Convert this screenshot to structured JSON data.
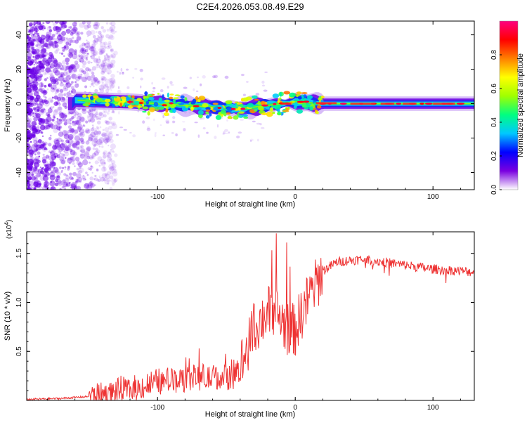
{
  "title": "C2E4.2026.053.08.49.E29",
  "chart_data": [
    {
      "type": "heatmap",
      "name": "spectrogram",
      "xlabel": "Height of straight line (km)",
      "ylabel": "Frequency (Hz)",
      "xlim": [
        -195,
        130
      ],
      "ylim": [
        -50,
        48
      ],
      "xticks": [
        -100,
        0,
        100
      ],
      "yticks": [
        -40,
        -20,
        0,
        20,
        40
      ],
      "colorbar": {
        "label": "Normalized spectral amplitude",
        "range": [
          0,
          1
        ],
        "ticks": [
          "0.0",
          "0.2",
          "0.4",
          "0.6",
          "0.8"
        ],
        "tick_values": [
          0,
          0.2,
          0.4,
          0.6,
          0.8
        ],
        "colors": [
          "#ffffff",
          "#7a00e0",
          "#0000ff",
          "#00c8ff",
          "#00ff80",
          "#a0ff00",
          "#ffff00",
          "#ff8000",
          "#ff0000",
          "#ff0080"
        ]
      },
      "band_center": [
        {
          "x": -160,
          "y": 2
        },
        {
          "x": -120,
          "y": 1
        },
        {
          "x": -100,
          "y": 0
        },
        {
          "x": -80,
          "y": -1
        },
        {
          "x": -60,
          "y": -2
        },
        {
          "x": -40,
          "y": -3
        },
        {
          "x": -20,
          "y": -1
        },
        {
          "x": 0,
          "y": 1
        },
        {
          "x": 20,
          "y": 0
        },
        {
          "x": 130,
          "y": 0
        }
      ]
    },
    {
      "type": "line",
      "name": "snr",
      "xlabel": "Height of straight line (km)",
      "ylabel": "SNR (10 * v/v)",
      "multiplier": "(x10",
      "multiplier_exp": "4",
      "multiplier_close": ")",
      "xlim": [
        -195,
        130
      ],
      "ylim": [
        0,
        1.72
      ],
      "xticks": [
        -100,
        0,
        100
      ],
      "yticks": [
        0.5,
        1.0,
        1.5
      ],
      "ytick_labels": [
        "0.5",
        "1.0",
        "1.5"
      ],
      "color": "#ee3333",
      "series": [
        {
          "name": "SNR",
          "x": [
            -195,
            -170,
            -160,
            -150,
            -140,
            -130,
            -120,
            -110,
            -100,
            -90,
            -80,
            -70,
            -60,
            -50,
            -45,
            -40,
            -35,
            -30,
            -25,
            -20,
            -15,
            -10,
            -5,
            0,
            5,
            10,
            15,
            20,
            30,
            40,
            50,
            60,
            70,
            80,
            90,
            100,
            110,
            120,
            130
          ],
          "y": [
            0.01,
            0.02,
            0.03,
            0.04,
            0.06,
            0.09,
            0.11,
            0.14,
            0.18,
            0.21,
            0.23,
            0.24,
            0.22,
            0.24,
            0.27,
            0.34,
            0.52,
            0.72,
            0.82,
            0.9,
            0.92,
            0.82,
            0.72,
            0.72,
            0.9,
            1.05,
            1.18,
            1.32,
            1.41,
            1.43,
            1.44,
            1.42,
            1.4,
            1.38,
            1.36,
            1.34,
            1.33,
            1.32,
            1.31
          ]
        }
      ]
    }
  ]
}
